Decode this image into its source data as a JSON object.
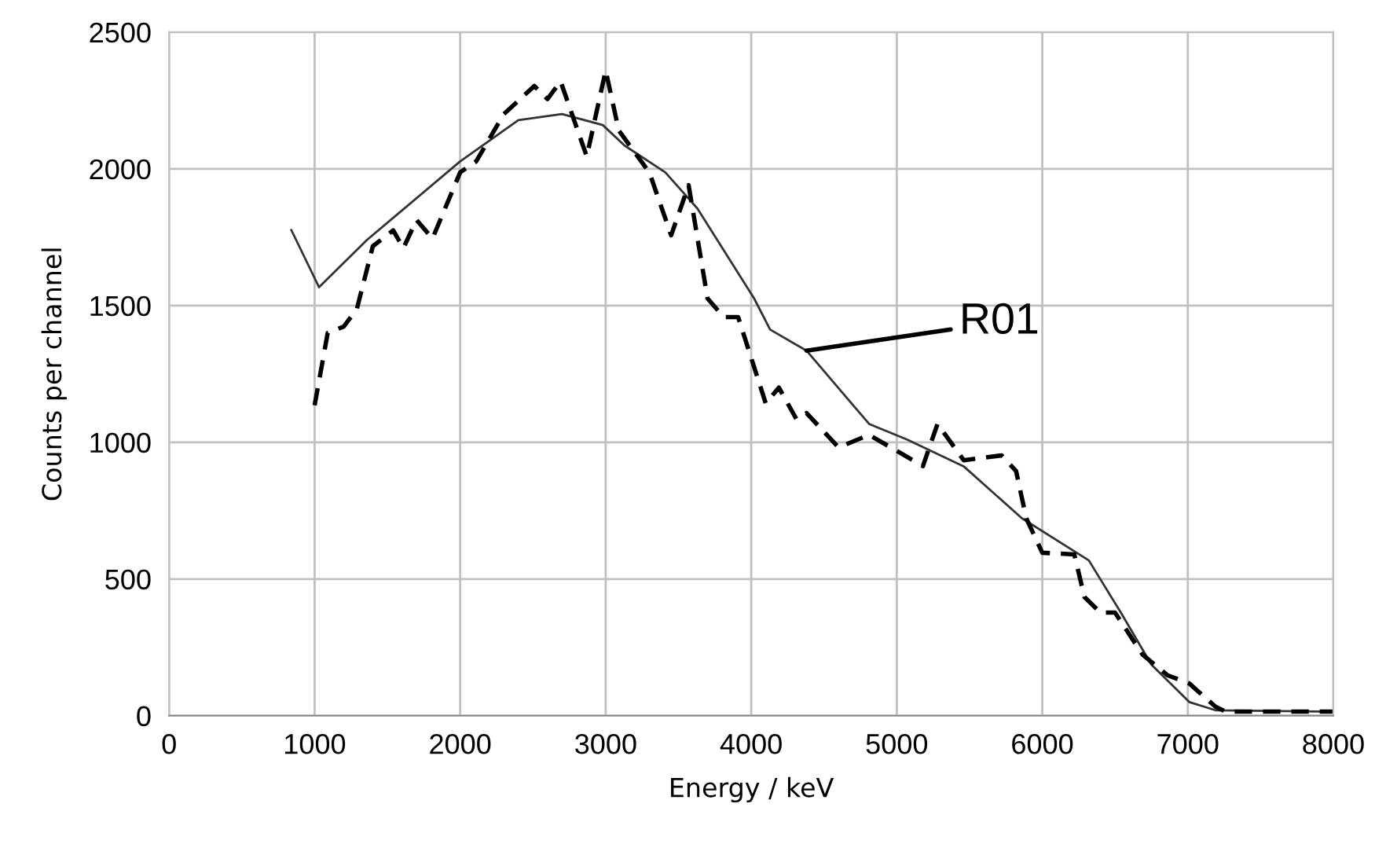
{
  "chart_data": {
    "type": "line",
    "xlabel": "Energy / keV",
    "ylabel": "Counts per channel",
    "xlim": [
      0,
      8000
    ],
    "ylim": [
      0,
      2500
    ],
    "xticks": [
      0,
      1000,
      2000,
      3000,
      4000,
      5000,
      6000,
      7000,
      8000
    ],
    "yticks": [
      0,
      500,
      1000,
      1500,
      2000,
      2500
    ],
    "grid": true,
    "legend": false,
    "annotations": [
      {
        "text": "R01",
        "x": 4380,
        "y": 1335
      }
    ],
    "series": [
      {
        "color": "#333333",
        "line_style": "solid",
        "x": [
          840,
          1030,
          1360,
          2000,
          2400,
          2700,
          2980,
          3130,
          3410,
          3630,
          4020,
          4130,
          4380,
          4810,
          5070,
          5460,
          5860,
          6320,
          6540,
          6750,
          7010,
          7190,
          8000
        ],
        "values": [
          1776,
          1567,
          1740,
          2027,
          2178,
          2200,
          2160,
          2085,
          1987,
          1855,
          1526,
          1412,
          1335,
          1067,
          1010,
          912,
          722,
          568,
          377,
          187,
          50,
          20,
          15
        ]
      },
      {
        "color": "#000000",
        "line_style": "dashed",
        "x": [
          1000,
          1090,
          1200,
          1290,
          1400,
          1540,
          1610,
          1700,
          1810,
          2000,
          2110,
          2300,
          2510,
          2600,
          2690,
          2870,
          3000,
          3090,
          3300,
          3450,
          3570,
          3700,
          3810,
          3910,
          4100,
          4190,
          4310,
          4380,
          4600,
          4810,
          5180,
          5280,
          5460,
          5720,
          5820,
          5890,
          6000,
          6220,
          6290,
          6400,
          6500,
          6690,
          6860,
          7010,
          7190,
          7260,
          8000
        ],
        "values": [
          1135,
          1400,
          1423,
          1487,
          1717,
          1775,
          1710,
          1813,
          1745,
          1987,
          2027,
          2200,
          2303,
          2255,
          2320,
          2045,
          2360,
          2140,
          1987,
          1757,
          1940,
          1526,
          1458,
          1458,
          1142,
          1200,
          1085,
          1107,
          981,
          1027,
          913,
          1067,
          934,
          952,
          895,
          722,
          596,
          590,
          434,
          377,
          377,
          223,
          148,
          118,
          33,
          15,
          15
        ]
      }
    ]
  }
}
